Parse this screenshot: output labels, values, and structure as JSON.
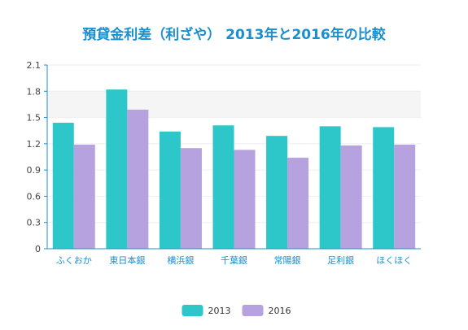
{
  "chart_data": {
    "type": "bar",
    "title": "預貸金利差（利ざや） 2013年と2016年の比較",
    "xlabel": "",
    "ylabel": "",
    "categories": [
      "ふくおか",
      "東日本銀",
      "横浜銀",
      "千葉銀",
      "常陽銀",
      "足利銀",
      "ほくほく"
    ],
    "series": [
      {
        "name": "2013",
        "color": "#2ec7c9",
        "values": [
          1.44,
          1.82,
          1.34,
          1.41,
          1.29,
          1.4,
          1.39
        ]
      },
      {
        "name": "2016",
        "color": "#b6a2de",
        "values": [
          1.19,
          1.59,
          1.15,
          1.13,
          1.04,
          1.18,
          1.19
        ]
      }
    ],
    "ylim": [
      0,
      2.1
    ],
    "yticks": [
      "0",
      "0.3",
      "0.6",
      "0.9",
      "1.2",
      "1.5",
      "1.8",
      "2.1"
    ],
    "grid": true,
    "legend_position": "bottom-center",
    "title_color": "#1a8fd0",
    "axis_color": "#1a8fd0"
  }
}
